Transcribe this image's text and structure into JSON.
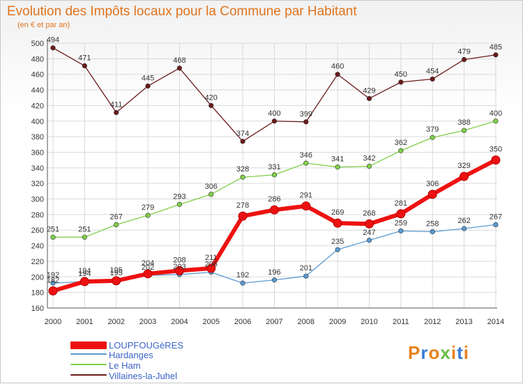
{
  "title": "Evolution des Impôts locaux pour la Commune par Habitant",
  "subtitle": "(en € et par an)",
  "logo": "Proxiti",
  "colors": {
    "title": "#e0731d",
    "axis": "#555555",
    "grid": "#d9d9d9",
    "legend_text": "#3a62c8"
  },
  "chart_data": {
    "type": "line",
    "x": [
      "2000",
      "2001",
      "2002",
      "2003",
      "2004",
      "2005",
      "2006",
      "2007",
      "2008",
      "2009",
      "2010",
      "2011",
      "2012",
      "2013",
      "2014"
    ],
    "ylim": [
      160,
      500
    ],
    "yticks": [
      160,
      180,
      200,
      220,
      240,
      260,
      280,
      300,
      320,
      340,
      360,
      380,
      400,
      420,
      440,
      460,
      480,
      500
    ],
    "grid": true,
    "legend_position": "bottom-left",
    "series": [
      {
        "name": "Villaines-la-Juhel",
        "color": "#6b1a1a",
        "values": [
          494,
          471,
          411,
          445,
          468,
          420,
          374,
          400,
          399,
          460,
          429,
          450,
          454,
          479,
          485
        ],
        "labels": [
          "494",
          "471",
          "411",
          "445",
          "468",
          "420",
          "374",
          "400",
          "399",
          "460",
          "429",
          "450",
          "454",
          "479",
          "485"
        ]
      },
      {
        "name": "Le Ham",
        "color": "#7fcf4a",
        "values": [
          251,
          251,
          267,
          279,
          293,
          306,
          328,
          331,
          346,
          341,
          342,
          362,
          379,
          388,
          400
        ],
        "labels": [
          "251",
          "251",
          "267",
          "279",
          "293",
          "306",
          "328",
          "331",
          "346",
          "341",
          "342",
          "362",
          "379",
          "388",
          "400"
        ]
      },
      {
        "name": "Hardanges",
        "color": "#5a9ad3",
        "values": [
          192,
          194,
          195,
          202,
          203,
          206,
          192,
          196,
          201,
          235,
          247,
          259,
          258,
          262,
          267
        ],
        "labels": [
          "192",
          "194",
          "195",
          "202",
          "203",
          "206",
          "192",
          "196",
          "201",
          "235",
          "247",
          "259",
          "258",
          "262",
          "267"
        ]
      },
      {
        "name": "LOUPFOUGèRES",
        "color": "#ee1111",
        "emphasis": true,
        "values": [
          182,
          194,
          195,
          204,
          208,
          211,
          278,
          286,
          291,
          269,
          268,
          281,
          306,
          329,
          350
        ],
        "labels": [
          "182",
          "194",
          "195",
          "204",
          "208",
          "211",
          "278",
          "286",
          "291",
          "269",
          "268",
          "281",
          "306",
          "329",
          "350"
        ]
      }
    ]
  },
  "legend": [
    {
      "label": "LOUPFOUGèRES",
      "color": "#ee1111",
      "thick": true
    },
    {
      "label": "Hardanges",
      "color": "#5a9ad3",
      "thick": false
    },
    {
      "label": "Le Ham",
      "color": "#7fcf4a",
      "thick": false
    },
    {
      "label": "Villaines-la-Juhel",
      "color": "#6b1a1a",
      "thick": false
    }
  ]
}
